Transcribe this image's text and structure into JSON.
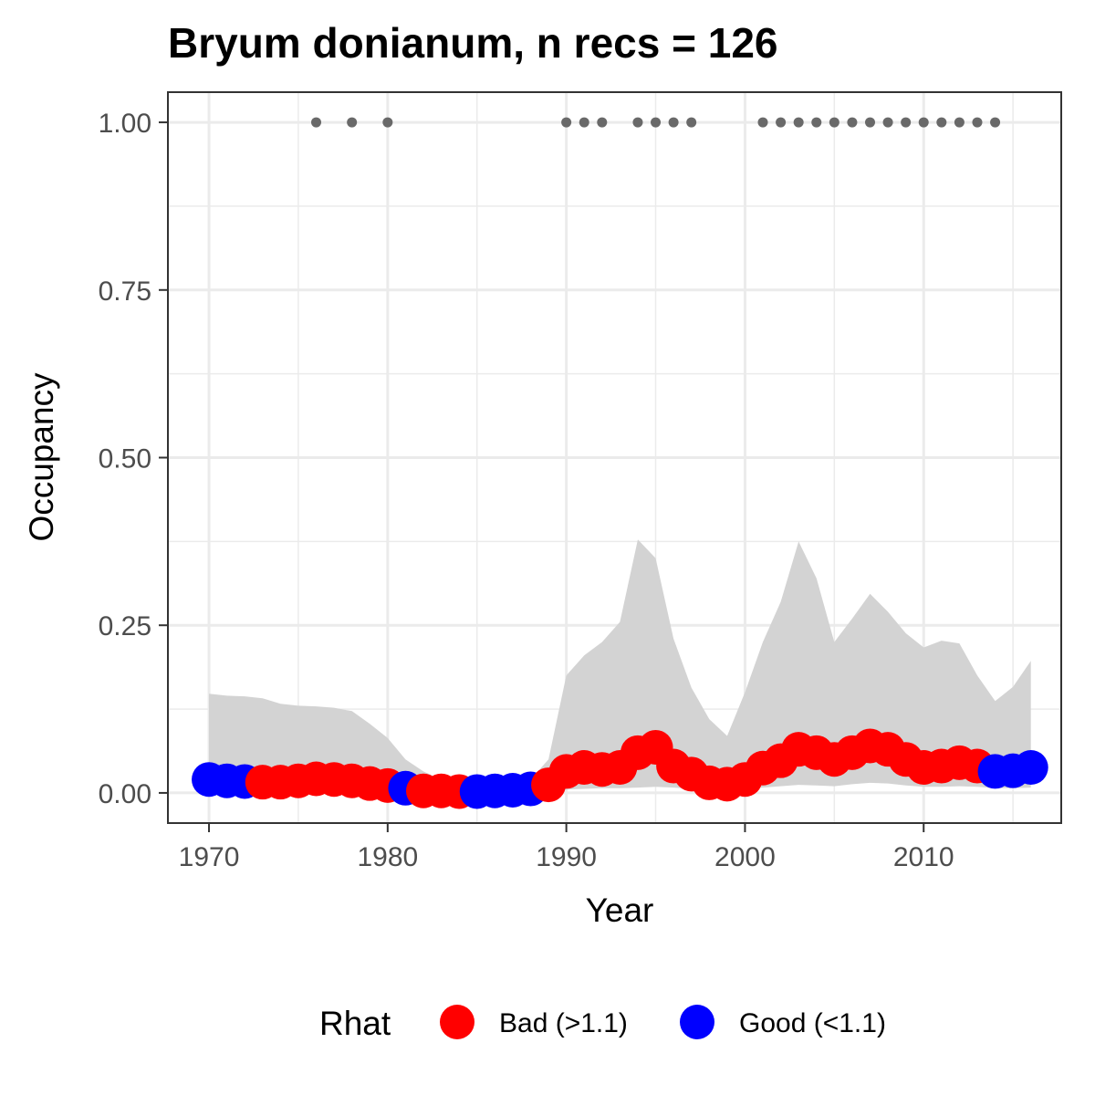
{
  "chart_data": {
    "type": "line",
    "title": "Bryum donianum, n recs = 126",
    "xlabel": "Year",
    "ylabel": "Occupancy",
    "xlim": [
      1967.7,
      2017.7
    ],
    "ylim": [
      -0.045,
      1.045
    ],
    "x_ticks": [
      1970,
      1980,
      1990,
      2000,
      2010
    ],
    "x_tick_labels": [
      "1970",
      "1980",
      "1990",
      "2000",
      "2010"
    ],
    "y_ticks": [
      0,
      0.25,
      0.5,
      0.75,
      1.0
    ],
    "y_tick_labels": [
      "0.00",
      "0.25",
      "0.50",
      "0.75",
      "1.00"
    ],
    "grid": true,
    "legend": {
      "title": "Rhat",
      "position": "bottom",
      "entries": [
        {
          "label": "Bad (>1.1)",
          "color": "#ff0000"
        },
        {
          "label": "Good (<1.1)",
          "color": "#0000ff"
        }
      ]
    },
    "colors": {
      "bad": "#ff0000",
      "good": "#0000ff",
      "ribbon": "#d3d3d3",
      "records": "#696969"
    },
    "occupancy": {
      "years": [
        1970,
        1971,
        1972,
        1973,
        1974,
        1975,
        1976,
        1977,
        1978,
        1979,
        1980,
        1981,
        1982,
        1983,
        1984,
        1985,
        1986,
        1987,
        1988,
        1989,
        1990,
        1991,
        1992,
        1993,
        1994,
        1995,
        1996,
        1997,
        1998,
        1999,
        2000,
        2001,
        2002,
        2003,
        2004,
        2005,
        2006,
        2007,
        2008,
        2009,
        2010,
        2011,
        2012,
        2013,
        2014,
        2015,
        2016
      ],
      "values": [
        0.02,
        0.018,
        0.017,
        0.016,
        0.016,
        0.018,
        0.021,
        0.02,
        0.018,
        0.014,
        0.011,
        0.007,
        0.003,
        0.003,
        0.002,
        0.002,
        0.003,
        0.004,
        0.006,
        0.012,
        0.032,
        0.038,
        0.035,
        0.038,
        0.06,
        0.068,
        0.04,
        0.028,
        0.015,
        0.013,
        0.02,
        0.037,
        0.048,
        0.065,
        0.06,
        0.05,
        0.06,
        0.07,
        0.065,
        0.05,
        0.038,
        0.04,
        0.045,
        0.04,
        0.032,
        0.033,
        0.038
      ],
      "rhat": [
        "good",
        "good",
        "good",
        "bad",
        "bad",
        "bad",
        "bad",
        "bad",
        "bad",
        "bad",
        "bad",
        "good",
        "bad",
        "bad",
        "bad",
        "good",
        "good",
        "good",
        "good",
        "bad",
        "bad",
        "bad",
        "bad",
        "bad",
        "bad",
        "bad",
        "bad",
        "bad",
        "bad",
        "bad",
        "bad",
        "bad",
        "bad",
        "bad",
        "bad",
        "bad",
        "bad",
        "bad",
        "bad",
        "bad",
        "bad",
        "bad",
        "bad",
        "bad",
        "good",
        "good",
        "good"
      ]
    },
    "ci_ribbon": {
      "years": [
        1970,
        1971,
        1972,
        1973,
        1974,
        1975,
        1976,
        1977,
        1978,
        1979,
        1980,
        1981,
        1982,
        1983,
        1984,
        1985,
        1986,
        1987,
        1988,
        1989,
        1990,
        1991,
        1992,
        1993,
        1994,
        1995,
        1996,
        1997,
        1998,
        1999,
        2000,
        2001,
        2002,
        2003,
        2004,
        2005,
        2006,
        2007,
        2008,
        2009,
        2010,
        2011,
        2012,
        2013,
        2014,
        2015,
        2016
      ],
      "upper": [
        0.148,
        0.145,
        0.144,
        0.141,
        0.133,
        0.13,
        0.129,
        0.127,
        0.122,
        0.103,
        0.082,
        0.05,
        0.032,
        0.02,
        0.014,
        0.01,
        0.01,
        0.012,
        0.02,
        0.05,
        0.175,
        0.205,
        0.225,
        0.255,
        0.378,
        0.35,
        0.23,
        0.157,
        0.11,
        0.085,
        0.15,
        0.225,
        0.285,
        0.375,
        0.32,
        0.225,
        0.26,
        0.297,
        0.27,
        0.238,
        0.217,
        0.227,
        0.223,
        0.175,
        0.137,
        0.158,
        0.197
      ],
      "lower": [
        0.008,
        0.007,
        0.007,
        0.006,
        0.006,
        0.006,
        0.006,
        0.006,
        0.005,
        0.004,
        0.003,
        0.002,
        0.001,
        0.001,
        0.001,
        0.001,
        0.001,
        0.001,
        0.002,
        0.003,
        0.005,
        0.006,
        0.007,
        0.007,
        0.008,
        0.009,
        0.008,
        0.006,
        0.004,
        0.003,
        0.006,
        0.008,
        0.01,
        0.012,
        0.011,
        0.01,
        0.013,
        0.015,
        0.014,
        0.011,
        0.009,
        0.009,
        0.01,
        0.009,
        0.007,
        0.007,
        0.008
      ]
    },
    "records": {
      "years": [
        1976,
        1978,
        1980,
        1990,
        1991,
        1992,
        1994,
        1995,
        1996,
        1997,
        2001,
        2002,
        2003,
        2004,
        2005,
        2006,
        2007,
        2008,
        2009,
        2010,
        2011,
        2012,
        2013,
        2014
      ],
      "value": 1.0
    }
  }
}
